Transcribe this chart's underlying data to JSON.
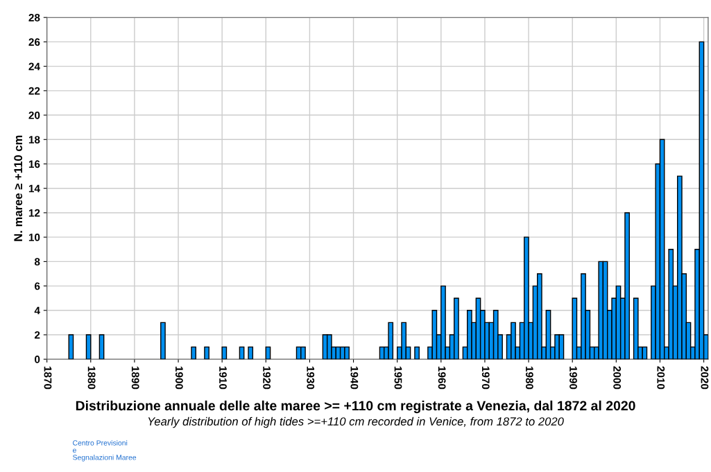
{
  "chart_data": {
    "type": "bar",
    "title": "Distribuzione annuale delle alte maree >= +110 cm registrate a Venezia, dal 1872 al 2020",
    "subtitle": "Yearly distribution of high tides >=+110 cm recorded in Venice, from 1872 to 2020",
    "ylabel": "N. maree ≥ +110 cm",
    "x": [
      1875,
      1879,
      1882,
      1896,
      1903,
      1906,
      1910,
      1914,
      1916,
      1920,
      1927,
      1928,
      1933,
      1934,
      1935,
      1936,
      1937,
      1938,
      1946,
      1947,
      1948,
      1950,
      1951,
      1952,
      1954,
      1957,
      1958,
      1959,
      1960,
      1961,
      1962,
      1963,
      1965,
      1966,
      1967,
      1968,
      1969,
      1970,
      1971,
      1972,
      1973,
      1975,
      1976,
      1977,
      1978,
      1979,
      1980,
      1981,
      1982,
      1983,
      1984,
      1985,
      1986,
      1987,
      1990,
      1991,
      1992,
      1993,
      1994,
      1995,
      1996,
      1997,
      1998,
      1999,
      2000,
      2001,
      2002,
      2004,
      2005,
      2006,
      2008,
      2009,
      2010,
      2011,
      2012,
      2013,
      2014,
      2015,
      2016,
      2017,
      2018,
      2019,
      2020
    ],
    "values": [
      2,
      2,
      2,
      3,
      1,
      1,
      1,
      1,
      1,
      1,
      1,
      1,
      2,
      2,
      1,
      1,
      1,
      1,
      1,
      1,
      3,
      1,
      3,
      1,
      1,
      1,
      4,
      2,
      6,
      1,
      2,
      5,
      1,
      4,
      3,
      5,
      4,
      3,
      3,
      4,
      2,
      2,
      3,
      1,
      3,
      10,
      3,
      6,
      7,
      1,
      4,
      1,
      2,
      2,
      5,
      1,
      7,
      4,
      1,
      1,
      8,
      8,
      4,
      5,
      6,
      5,
      12,
      5,
      1,
      1,
      6,
      16,
      18,
      1,
      9,
      6,
      15,
      7,
      3,
      1,
      9,
      26,
      2
    ],
    "color": "#0090f0",
    "xlim": [
      1870,
      2021
    ],
    "xticks": [
      1870,
      1880,
      1890,
      1900,
      1910,
      1920,
      1930,
      1940,
      1950,
      1960,
      1970,
      1980,
      1990,
      2000,
      2010,
      2020
    ],
    "ylim": [
      0,
      28
    ],
    "yticks": [
      0,
      2,
      4,
      6,
      8,
      10,
      12,
      14,
      16,
      18,
      20,
      22,
      24,
      26,
      28
    ],
    "grid": true,
    "annotations": [
      "Centro Previsioni\ne\nSegnalazioni Maree"
    ]
  }
}
